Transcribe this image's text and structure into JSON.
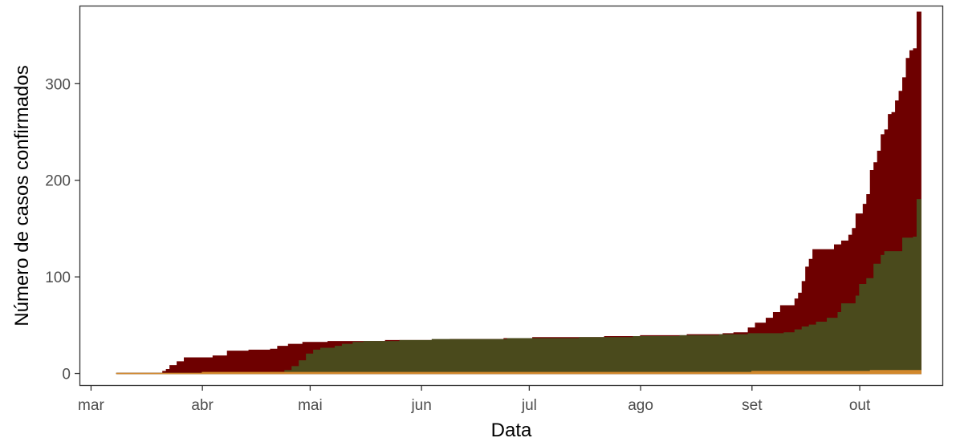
{
  "chart_data": {
    "type": "area",
    "xlabel": "Data",
    "ylabel": "Número de casos confirmados",
    "xlim": [
      "2020-02-27",
      "2020-10-24"
    ],
    "ylim": [
      -12,
      380
    ],
    "x_ticks": [
      {
        "date": "2020-03-01",
        "label": "mar"
      },
      {
        "date": "2020-04-01",
        "label": "abr"
      },
      {
        "date": "2020-05-01",
        "label": "mai"
      },
      {
        "date": "2020-06-01",
        "label": "jun"
      },
      {
        "date": "2020-07-01",
        "label": "jul"
      },
      {
        "date": "2020-08-01",
        "label": "ago"
      },
      {
        "date": "2020-09-01",
        "label": "set"
      },
      {
        "date": "2020-10-01",
        "label": "out"
      }
    ],
    "y_ticks": [
      0,
      100,
      200,
      300
    ],
    "grid": false,
    "legend": "none",
    "series": [
      {
        "color": "#6e0000",
        "points": [
          [
            "2020-03-08",
            0
          ],
          [
            "2020-03-20",
            0
          ],
          [
            "2020-03-21",
            2
          ],
          [
            "2020-03-22",
            4
          ],
          [
            "2020-03-23",
            8
          ],
          [
            "2020-03-25",
            12
          ],
          [
            "2020-03-27",
            16
          ],
          [
            "2020-04-04",
            18
          ],
          [
            "2020-04-08",
            23
          ],
          [
            "2020-04-14",
            24
          ],
          [
            "2020-04-20",
            25
          ],
          [
            "2020-04-22",
            28
          ],
          [
            "2020-04-25",
            30
          ],
          [
            "2020-04-29",
            32
          ],
          [
            "2020-05-06",
            33
          ],
          [
            "2020-05-22",
            34
          ],
          [
            "2020-06-09",
            35
          ],
          [
            "2020-06-24",
            36
          ],
          [
            "2020-07-02",
            37
          ],
          [
            "2020-07-22",
            38
          ],
          [
            "2020-08-01",
            39
          ],
          [
            "2020-08-14",
            40
          ],
          [
            "2020-08-24",
            41
          ],
          [
            "2020-08-27",
            42
          ],
          [
            "2020-08-31",
            47
          ],
          [
            "2020-09-02",
            52
          ],
          [
            "2020-09-05",
            57
          ],
          [
            "2020-09-07",
            63
          ],
          [
            "2020-09-09",
            70
          ],
          [
            "2020-09-13",
            77
          ],
          [
            "2020-09-14",
            83
          ],
          [
            "2020-09-15",
            95
          ],
          [
            "2020-09-16",
            110
          ],
          [
            "2020-09-17",
            118
          ],
          [
            "2020-09-18",
            128
          ],
          [
            "2020-09-24",
            133
          ],
          [
            "2020-09-26",
            137
          ],
          [
            "2020-09-28",
            143
          ],
          [
            "2020-09-29",
            150
          ],
          [
            "2020-09-30",
            165
          ],
          [
            "2020-10-02",
            175
          ],
          [
            "2020-10-03",
            185
          ],
          [
            "2020-10-04",
            210
          ],
          [
            "2020-10-05",
            218
          ],
          [
            "2020-10-06",
            230
          ],
          [
            "2020-10-07",
            247
          ],
          [
            "2020-10-08",
            252
          ],
          [
            "2020-10-09",
            268
          ],
          [
            "2020-10-10",
            270
          ],
          [
            "2020-10-11",
            282
          ],
          [
            "2020-10-12",
            292
          ],
          [
            "2020-10-13",
            306
          ],
          [
            "2020-10-14",
            326
          ],
          [
            "2020-10-15",
            334
          ],
          [
            "2020-10-16",
            336
          ],
          [
            "2020-10-17",
            374
          ],
          [
            "2020-10-18",
            374
          ]
        ]
      },
      {
        "color": "#4a4a1c",
        "points": [
          [
            "2020-03-08",
            0
          ],
          [
            "2020-04-20",
            1
          ],
          [
            "2020-04-24",
            3
          ],
          [
            "2020-04-26",
            7
          ],
          [
            "2020-04-28",
            13
          ],
          [
            "2020-04-30",
            20
          ],
          [
            "2020-05-02",
            24
          ],
          [
            "2020-05-04",
            26
          ],
          [
            "2020-05-08",
            28
          ],
          [
            "2020-05-10",
            30
          ],
          [
            "2020-05-13",
            32
          ],
          [
            "2020-05-16",
            33
          ],
          [
            "2020-05-26",
            34
          ],
          [
            "2020-06-04",
            35
          ],
          [
            "2020-06-25",
            36
          ],
          [
            "2020-07-15",
            37
          ],
          [
            "2020-07-30",
            38
          ],
          [
            "2020-08-12",
            39
          ],
          [
            "2020-08-23",
            40
          ],
          [
            "2020-08-31",
            41
          ],
          [
            "2020-09-10",
            42
          ],
          [
            "2020-09-13",
            45
          ],
          [
            "2020-09-15",
            48
          ],
          [
            "2020-09-17",
            50
          ],
          [
            "2020-09-19",
            53
          ],
          [
            "2020-09-22",
            57
          ],
          [
            "2020-09-25",
            63
          ],
          [
            "2020-09-26",
            72
          ],
          [
            "2020-09-30",
            80
          ],
          [
            "2020-10-01",
            92
          ],
          [
            "2020-10-03",
            98
          ],
          [
            "2020-10-05",
            113
          ],
          [
            "2020-10-07",
            122
          ],
          [
            "2020-10-08",
            126
          ],
          [
            "2020-10-13",
            140
          ],
          [
            "2020-10-16",
            141
          ],
          [
            "2020-10-17",
            180
          ],
          [
            "2020-10-18",
            180
          ]
        ]
      },
      {
        "color": "#d2882c",
        "points": [
          [
            "2020-03-08",
            0
          ],
          [
            "2020-04-01",
            1
          ],
          [
            "2020-09-01",
            2
          ],
          [
            "2020-10-04",
            3
          ],
          [
            "2020-10-18",
            3
          ]
        ]
      }
    ]
  }
}
